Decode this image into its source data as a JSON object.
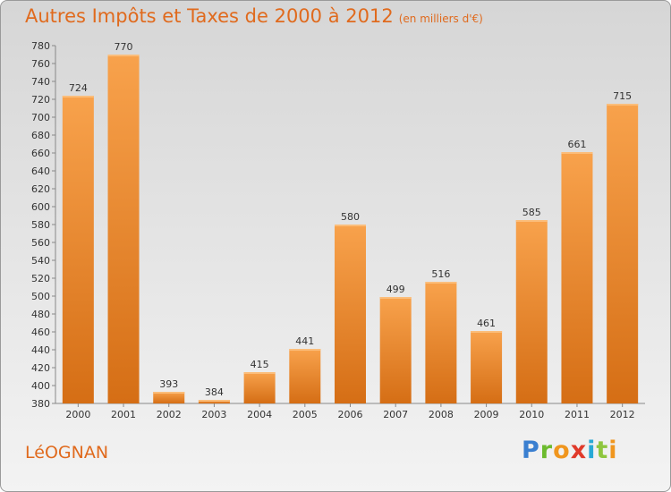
{
  "header": {
    "title": "Autres Impôts et Taxes de 2000 à 2012",
    "unit": "(en milliers d'€)"
  },
  "footer": {
    "city": "LéOGNAN",
    "logo": [
      "P",
      "r",
      "o",
      "x",
      "i",
      "t",
      "i"
    ]
  },
  "colors": {
    "accent": "#e06a1d",
    "bar_light": "#f8a24c",
    "bar_dark": "#d56e15"
  },
  "chart_data": {
    "type": "bar",
    "title": "Autres Impôts et Taxes de 2000 à 2012",
    "subtitle": "(en milliers d'€)",
    "categories": [
      "2000",
      "2001",
      "2002",
      "2003",
      "2004",
      "2005",
      "2006",
      "2007",
      "2008",
      "2009",
      "2010",
      "2011",
      "2012"
    ],
    "values": [
      724,
      770,
      393,
      384,
      415,
      441,
      580,
      499,
      516,
      461,
      585,
      661,
      715
    ],
    "ylim": [
      380,
      780
    ],
    "yticks": [
      380,
      400,
      420,
      440,
      460,
      480,
      500,
      520,
      540,
      560,
      580,
      600,
      620,
      640,
      660,
      680,
      700,
      720,
      740,
      760,
      780
    ],
    "grid": false,
    "legend": "none"
  }
}
